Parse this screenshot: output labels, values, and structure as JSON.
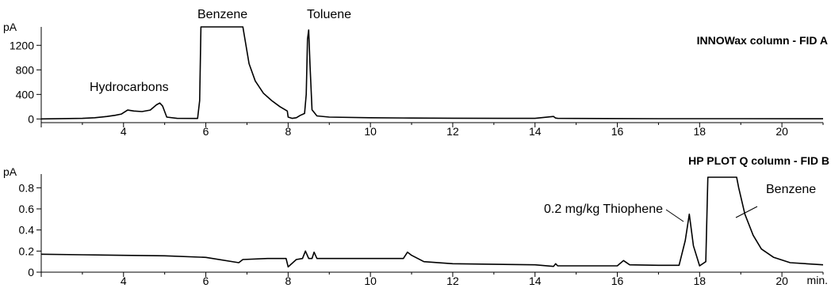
{
  "chart_data": [
    {
      "type": "line",
      "title": "INNOWax column - FID A",
      "ylabel": "pA",
      "xlim": [
        2,
        21
      ],
      "ylim": [
        -60,
        1500
      ],
      "yticks": [
        0,
        400,
        800,
        1200
      ],
      "xticks": [
        4,
        6,
        8,
        10,
        12,
        14,
        16,
        18,
        20
      ],
      "xticklabels": [
        "4",
        "6",
        "8",
        "10",
        "12",
        "14",
        "16",
        "18",
        "20"
      ],
      "series": [
        {
          "x": [
            2.0,
            3.0,
            3.3,
            3.6,
            3.8,
            3.95,
            4.1,
            4.25,
            4.45,
            4.65,
            4.8,
            4.88,
            4.95,
            5.05,
            5.3,
            5.8,
            5.85,
            5.88,
            6.9,
            6.95,
            7.05,
            7.2,
            7.4,
            7.6,
            7.8,
            7.98,
            8.0,
            8.1,
            8.2,
            8.3,
            8.4,
            8.44,
            8.47,
            8.5,
            8.53,
            8.58,
            8.7,
            9.0,
            10.0,
            11.0,
            12.0,
            14.0,
            14.45,
            14.5,
            14.55,
            15.0,
            17.0,
            19.0,
            21.0
          ],
          "y": [
            0,
            10,
            20,
            40,
            60,
            80,
            145,
            130,
            120,
            145,
            230,
            260,
            210,
            30,
            10,
            8,
            300,
            1500,
            1500,
            1300,
            900,
            620,
            420,
            300,
            200,
            130,
            30,
            10,
            20,
            60,
            90,
            400,
            1300,
            1450,
            900,
            150,
            50,
            30,
            20,
            15,
            12,
            10,
            40,
            15,
            10,
            8,
            5,
            4,
            3
          ]
        }
      ],
      "annotations": [
        "Hydrocarbons",
        "Benzene",
        "Toluene"
      ]
    },
    {
      "type": "line",
      "title": "HP PLOT Q column - FID B",
      "ylabel": "pA",
      "xlabel": "min.",
      "xlim": [
        2,
        21
      ],
      "ylim": [
        0,
        0.93
      ],
      "yticks": [
        0,
        0.2,
        0.4,
        0.6,
        0.8
      ],
      "yticklabels": [
        "0",
        "0.2",
        "0.4",
        "0.6",
        "0.8"
      ],
      "xticks": [
        4,
        6,
        8,
        10,
        12,
        14,
        16,
        18,
        20
      ],
      "xticklabels": [
        "4",
        "6",
        "8",
        "10",
        "12",
        "14",
        "16",
        "18",
        "20"
      ],
      "series": [
        {
          "x": [
            2.0,
            3.0,
            4.0,
            5.0,
            6.0,
            6.8,
            6.9,
            7.5,
            7.95,
            8.0,
            8.2,
            8.35,
            8.42,
            8.5,
            8.58,
            8.63,
            8.7,
            9.0,
            10.0,
            10.8,
            10.9,
            11.0,
            11.3,
            12.0,
            14.0,
            14.45,
            14.5,
            14.55,
            15.0,
            16.0,
            16.15,
            16.3,
            17.0,
            17.5,
            17.65,
            17.75,
            17.85,
            18.0,
            18.15,
            18.2,
            18.9,
            18.95,
            19.1,
            19.3,
            19.5,
            19.8,
            20.2,
            21.0
          ],
          "y": [
            0.17,
            0.165,
            0.16,
            0.155,
            0.14,
            0.09,
            0.12,
            0.13,
            0.13,
            0.05,
            0.12,
            0.13,
            0.2,
            0.13,
            0.13,
            0.19,
            0.13,
            0.13,
            0.13,
            0.13,
            0.19,
            0.16,
            0.1,
            0.08,
            0.07,
            0.055,
            0.08,
            0.06,
            0.06,
            0.06,
            0.11,
            0.07,
            0.065,
            0.065,
            0.3,
            0.55,
            0.25,
            0.06,
            0.1,
            0.9,
            0.9,
            0.8,
            0.55,
            0.35,
            0.22,
            0.14,
            0.09,
            0.07
          ]
        }
      ],
      "annotations": [
        "0.2 mg/kg Thiophene",
        "Benzene"
      ]
    }
  ]
}
